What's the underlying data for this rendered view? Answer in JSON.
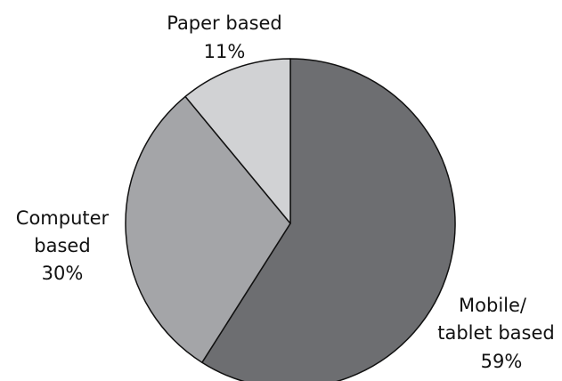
{
  "chart_data": {
    "type": "pie",
    "start_angle_deg": 0,
    "direction": "clockwise",
    "slices": [
      {
        "label_lines": [
          "Mobile/",
          "tablet based"
        ],
        "value_label": "59%",
        "value": 59,
        "color": "#6d6e71"
      },
      {
        "label_lines": [
          "Computer",
          "based"
        ],
        "value_label": "30%",
        "value": 30,
        "color": "#a4a5a8"
      },
      {
        "label_lines": [
          "Paper based"
        ],
        "value_label": "11%",
        "value": 11,
        "color": "#d1d2d4"
      }
    ]
  }
}
